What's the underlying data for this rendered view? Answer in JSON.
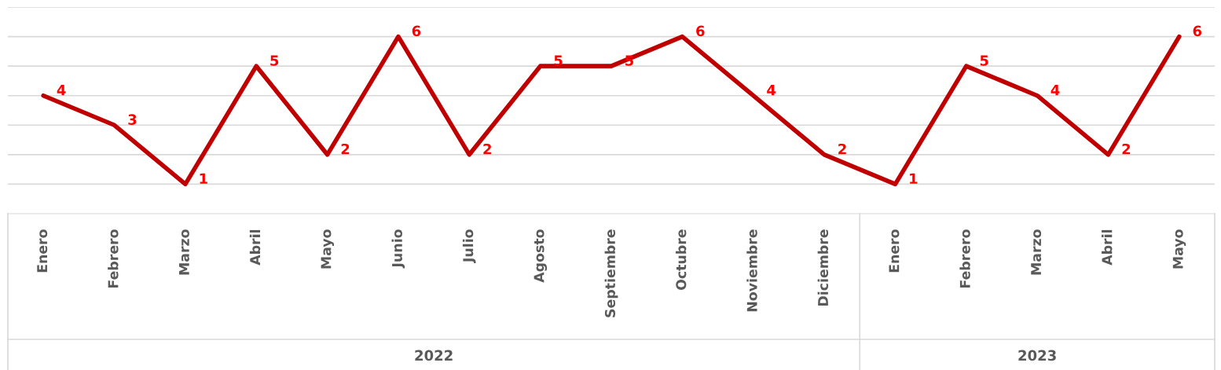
{
  "chart_data": {
    "type": "line",
    "categories": [
      "Enero",
      "Febrero",
      "Marzo",
      "Abril",
      "Mayo",
      "Junio",
      "Julio",
      "Agosto",
      "Septiembre",
      "Octubre",
      "Noviembre",
      "Diciembre",
      "Enero",
      "Febrero",
      "Marzo",
      "Abril",
      "Mayo"
    ],
    "series": [
      {
        "color": "#c00000",
        "values": [
          4,
          3,
          1,
          5,
          2,
          6,
          2,
          5,
          5,
          6,
          4,
          2,
          1,
          5,
          4,
          2,
          6
        ]
      }
    ],
    "ylim": [
      0,
      7
    ],
    "yticks": [
      {
        "value": 1,
        "label": null
      },
      {
        "value": 2,
        "label": null
      },
      {
        "value": 3,
        "label": null
      },
      {
        "value": 4,
        "label": null
      },
      {
        "value": 5,
        "label": null
      },
      {
        "value": 6,
        "label": null
      },
      {
        "value": 7,
        "label": null
      }
    ],
    "grid": "y",
    "tick_labels": "x",
    "data_labels": true,
    "marker": "none",
    "line_style": "solid",
    "annotations": [
      "2022",
      "2023"
    ]
  }
}
